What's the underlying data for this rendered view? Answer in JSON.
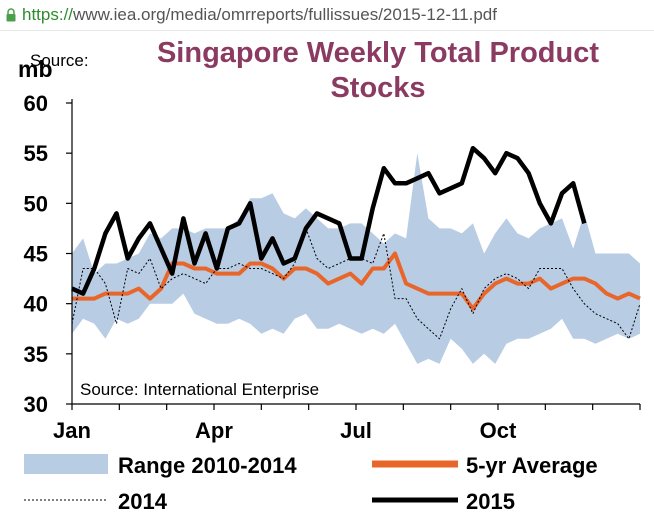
{
  "browser": {
    "url_scheme": "https://",
    "url_rest": "www.iea.org/media/omrreports/fullissues/2015-12-11.pdf"
  },
  "chart_data": {
    "type": "line",
    "title_line1": "Singapore Weekly Total Product",
    "title_line2": "Stocks",
    "ylabel": "mb",
    "top_note": "Source:",
    "source": "Source: International Enterprise",
    "ylim": [
      30,
      60
    ],
    "yticks": [
      30,
      35,
      40,
      45,
      50,
      55,
      60
    ],
    "xticks": [
      "Jan",
      "Apr",
      "Jul",
      "Oct"
    ],
    "grid": false,
    "legend_position": "bottom",
    "colors": {
      "range": "#b8cce4",
      "avg": "#e8662a",
      "y2014": "#000000",
      "y2015": "#000000",
      "title": "#8b3a62"
    },
    "weeks": 52,
    "series": [
      {
        "name": "Range 2010-2014",
        "kind": "band",
        "low": [
          37.0,
          38.5,
          38.0,
          36.5,
          38.5,
          38.0,
          38.5,
          40.0,
          40.0,
          40.0,
          41.0,
          39.0,
          38.5,
          38.0,
          38.0,
          38.5,
          38.0,
          37.0,
          37.5,
          37.0,
          38.5,
          39.0,
          37.5,
          37.5,
          38.0,
          37.5,
          37.0,
          37.5,
          37.0,
          38.0,
          36.0,
          34.0,
          34.5,
          34.0,
          36.5,
          35.5,
          34.0,
          35.0,
          34.0,
          36.0,
          36.5,
          36.5,
          37.0,
          37.5,
          38.5,
          36.5,
          36.5,
          36.0,
          36.5,
          37.0,
          36.5,
          37.0
        ],
        "high": [
          45.0,
          46.5,
          43.0,
          44.0,
          44.0,
          44.5,
          45.0,
          47.0,
          46.5,
          47.5,
          47.5,
          47.0,
          47.5,
          47.5,
          47.5,
          48.5,
          50.5,
          50.5,
          51.0,
          49.0,
          48.5,
          49.5,
          48.5,
          47.5,
          47.5,
          48.0,
          48.0,
          47.0,
          46.0,
          47.0,
          46.5,
          55.0,
          48.5,
          47.5,
          47.5,
          47.0,
          48.0,
          45.0,
          47.0,
          48.5,
          47.0,
          46.5,
          47.5,
          48.0,
          48.5,
          45.5,
          49.0,
          45.0,
          45.0,
          45.0,
          45.0,
          44.0
        ]
      },
      {
        "name": "5-yr Average",
        "kind": "line",
        "values": [
          40.5,
          40.5,
          40.5,
          41.0,
          41.0,
          41.0,
          41.5,
          40.5,
          41.5,
          44.0,
          44.0,
          43.5,
          43.5,
          43.0,
          43.0,
          43.0,
          44.0,
          44.0,
          43.5,
          42.5,
          43.5,
          43.5,
          43.0,
          42.0,
          42.5,
          43.0,
          42.0,
          43.5,
          43.5,
          45.0,
          42.0,
          41.5,
          41.0,
          41.0,
          41.0,
          41.0,
          39.5,
          41.0,
          42.0,
          42.5,
          42.0,
          42.0,
          42.5,
          41.5,
          42.0,
          42.5,
          42.5,
          42.0,
          41.0,
          40.5,
          41.0,
          40.5
        ]
      },
      {
        "name": "2014",
        "kind": "dotted",
        "values": [
          38.0,
          43.5,
          43.5,
          42.0,
          38.0,
          43.5,
          43.0,
          44.5,
          41.5,
          42.5,
          43.0,
          42.5,
          42.0,
          43.5,
          43.5,
          44.0,
          43.5,
          43.5,
          43.0,
          42.5,
          44.0,
          47.5,
          44.5,
          43.5,
          44.0,
          44.5,
          44.5,
          44.0,
          47.0,
          40.5,
          40.5,
          38.5,
          37.5,
          36.5,
          39.5,
          41.5,
          39.0,
          41.5,
          42.5,
          43.0,
          42.5,
          41.5,
          43.5,
          43.5,
          43.5,
          41.5,
          40.0,
          39.0,
          38.5,
          38.0,
          36.5,
          40.0
        ]
      },
      {
        "name": "2015",
        "kind": "line",
        "values": [
          41.5,
          41.0,
          43.5,
          47.0,
          49.0,
          44.5,
          46.5,
          48.0,
          45.5,
          43.0,
          48.5,
          44.0,
          47.0,
          43.5,
          47.5,
          48.0,
          50.0,
          44.5,
          46.5,
          44.0,
          44.5,
          47.5,
          49.0,
          48.5,
          48.0,
          44.5,
          44.5,
          49.5,
          53.5,
          52.0,
          52.0,
          52.5,
          53.0,
          51.0,
          51.5,
          52.0,
          55.5,
          54.5,
          53.0,
          55.0,
          54.5,
          53.0,
          50.0,
          48.0,
          51.0,
          52.0,
          48.0
        ]
      }
    ]
  }
}
